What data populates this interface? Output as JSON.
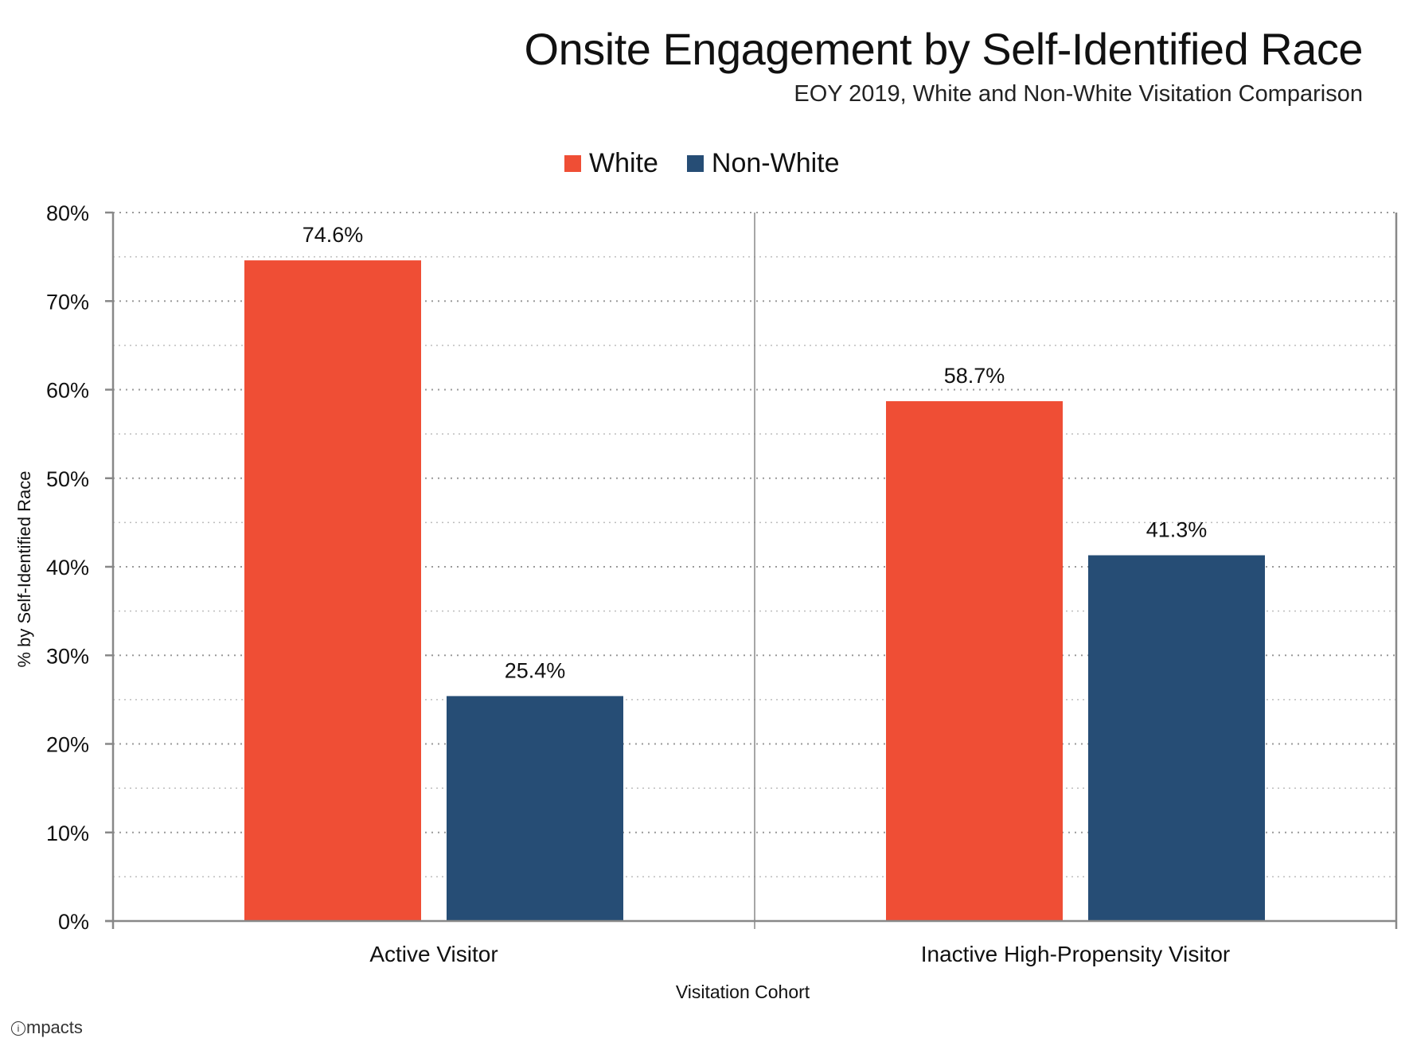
{
  "chart_data": {
    "type": "bar",
    "title": "Onsite Engagement by Self-Identified Race",
    "subtitle": "EOY 2019, White and Non-White Visitation Comparison",
    "xlabel": "Visitation Cohort",
    "ylabel": "% by Self-Identified Race",
    "ylim": [
      0,
      80
    ],
    "yticks": [
      0,
      10,
      20,
      30,
      40,
      50,
      60,
      70,
      80
    ],
    "ytick_labels": [
      "0%",
      "10%",
      "20%",
      "30%",
      "40%",
      "50%",
      "60%",
      "70%",
      "80%"
    ],
    "minor_grid_step": 5,
    "grid": true,
    "legend_position": "top-center",
    "categories": [
      "Active Visitor",
      "Inactive High-Propensity Visitor"
    ],
    "series": [
      {
        "name": "White",
        "color": "#EF4E35",
        "values": [
          74.6,
          58.7
        ],
        "data_labels": [
          "74.6%",
          "58.7%"
        ]
      },
      {
        "name": "Non-White",
        "color": "#264D75",
        "values": [
          25.4,
          41.3
        ],
        "data_labels": [
          "25.4%",
          "41.3%"
        ]
      }
    ]
  },
  "branding": {
    "logo_icon": "i",
    "logo_text": "mpacts"
  }
}
